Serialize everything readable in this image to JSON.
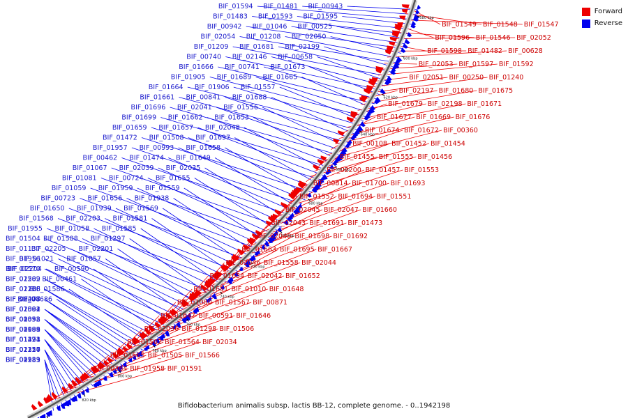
{
  "caption": "Bifidobacterium animalis subsp. lactis BB-12, complete genome. - 0..1942198",
  "legend": [
    {
      "label": "Forward",
      "color": "#ee0000"
    },
    {
      "label": "Reverse",
      "color": "#0000ee"
    }
  ],
  "ticks": [
    "580 kbp",
    "600 kbp",
    "620 kbp",
    "640 kbp",
    "660 kbp",
    "680 kbp",
    "700 kbp",
    "720 kbp",
    "740 kbp",
    "760 kbp",
    "780 kbp",
    "800 kbp",
    "820 kbp",
    "840 kbp"
  ],
  "reverse_labels": [
    "BIF_00943",
    "BIF_01481",
    "BIF_01594",
    "BIF_01595",
    "BIF_01593",
    "BIF_01483",
    "BIF_00525",
    "BIF_01046",
    "BIF_00942",
    "BIF_02050",
    "BIF_01208",
    "BIF_02054",
    "BIF_02199",
    "BIF_01681",
    "BIF_01209",
    "BIF_00658",
    "BIF_02146",
    "BIF_00740",
    "BIF_01673",
    "BIF_00741",
    "BIF_01666",
    "BIF_01665",
    "BIF_01689",
    "BIF_01905",
    "BIF_01557",
    "BIF_01906",
    "BIF_01664",
    "BIF_01688",
    "BIF_00841",
    "BIF_01661",
    "BIF_01556",
    "BIF_02041",
    "BIF_01696",
    "BIF_01653",
    "BIF_01662",
    "BIF_01699",
    "BIF_02048",
    "BIF_01657",
    "BIF_01659",
    "BIF_01697",
    "BIF_01508",
    "BIF_01472",
    "BIF_01658",
    "BIF_00993",
    "BIF_01957",
    "BIF_01649",
    "BIF_01474",
    "BIF_00462",
    "BIF_02035",
    "BIF_02039",
    "BIF_01067",
    "BIF_01655",
    "BIF_00724",
    "BIF_01081",
    "BIF_01559",
    "BIF_01959",
    "BIF_01059",
    "BIF_01938",
    "BIF_01656",
    "BIF_00723",
    "BIF_01569",
    "BIF_01939",
    "BIF_01650",
    "BIF_01581",
    "BIF_02203",
    "BIF_01568",
    "BIF_01585",
    "BIF_01058",
    "BIF_01955",
    "BIF_01297",
    "BIF_01588",
    "BIF_01504",
    "BIF_02201",
    "BIF_02205",
    "BIF_01137",
    "BIF_01057",
    "BIF_01021",
    "BIF_01956",
    "BIF_00590",
    "BIF_02204",
    "BIF_01570",
    "BIF_00461",
    "BIF_01589",
    "BIF_02202",
    "BIF_01586",
    "BIF_01138",
    "BIF_02206",
    "BIF_00686",
    "BIF_00477",
    "BIF_02208",
    "BIF_01584",
    "BIF_02002",
    "BIF_02091",
    "BIF_02032",
    "BIF_01393",
    "BIF_00058",
    "BIF_02089",
    "BIF_00991",
    "BIF_01188",
    "BIF_01423",
    "BIF_01271",
    "BIF_01394",
    "BIF_02210",
    "BIF_02124",
    "BIF_01357",
    "BIF_01189",
    "BIF_02213",
    "BIF_00931"
  ],
  "forward_labels": [
    "BIF_01549",
    "BIF_01548",
    "BIF_01547",
    "BIF_01596",
    "BIF_01546",
    "BIF_02052",
    "BIF_01598",
    "BIF_01482",
    "BIF_00628",
    "BIF_02053",
    "BIF_01597",
    "BIF_01592",
    "BIF_02051",
    "BIF_00250",
    "BIF_01240",
    "BIF_02197",
    "BIF_01680",
    "BIF_01675",
    "BIF_01679",
    "BIF_02198",
    "BIF_01671",
    "BIF_01677",
    "BIF_01669",
    "BIF_01676",
    "BIF_01674",
    "BIF_01672",
    "BIF_00360",
    "BIF_00108",
    "BIF_01452",
    "BIF_01454",
    "BIF_01455",
    "BIF_01555",
    "BIF_01456",
    "BIF_02200",
    "BIF_01457",
    "BIF_01553",
    "BIF_00814",
    "BIF_01700",
    "BIF_01693",
    "BIF_01552",
    "BIF_01694",
    "BIF_01551",
    "BIF_02045",
    "BIF_02047",
    "BIF_01660",
    "BIF_02043",
    "BIF_01691",
    "BIF_01473",
    "BIF_02040",
    "BIF_01698",
    "BIF_01692",
    "BIF_01663",
    "BIF_01695",
    "BIF_01667",
    "BIF_02046",
    "BIF_01558",
    "BIF_02044",
    "BIF_01654",
    "BIF_02042",
    "BIF_01652",
    "BIF_01651",
    "BIF_01010",
    "BIF_01648",
    "BIF_01080",
    "BIF_01567",
    "BIF_00871",
    "BIF_01647",
    "BIF_00591",
    "BIF_01646",
    "BIF_02036",
    "BIF_01298",
    "BIF_01506",
    "BIF_01502",
    "BIF_01564",
    "BIF_02034",
    "BIF_01565",
    "BIF_01505",
    "BIF_01566",
    "BIF_00364",
    "BIF_01958",
    "BIF_01591"
  ]
}
